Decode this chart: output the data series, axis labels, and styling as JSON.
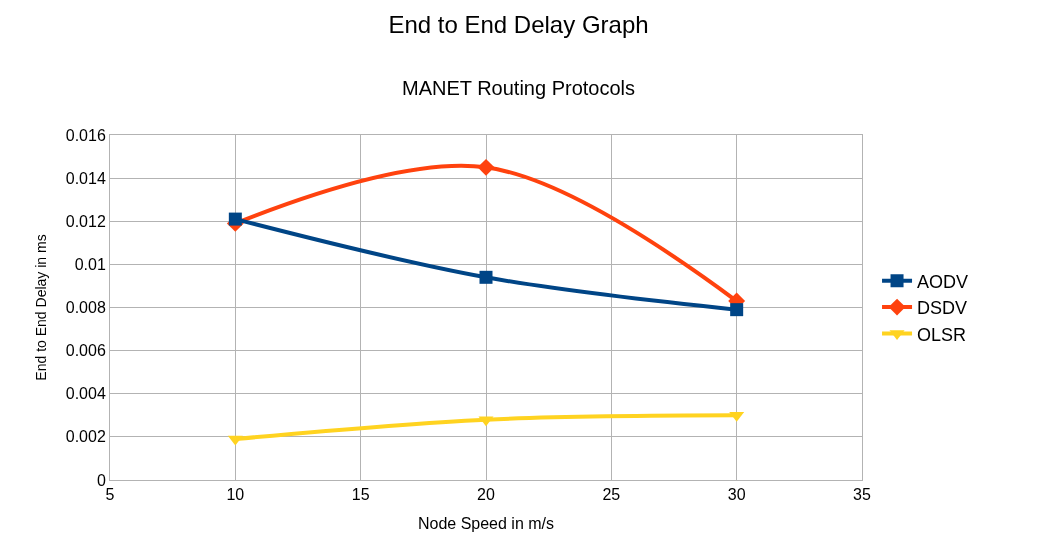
{
  "chart_data": {
    "type": "line",
    "title": "End to End Delay Graph",
    "subtitle": "MANET Routing Protocols",
    "xlabel": "Node Speed in m/s",
    "ylabel": "End to End Delay in ms",
    "x": [
      10,
      20,
      30
    ],
    "series": [
      {
        "name": "AODV",
        "color": "#004586",
        "values": [
          0.0121,
          0.0094,
          0.0079
        ],
        "marker": "square"
      },
      {
        "name": "DSDV",
        "color": "#ff420e",
        "values": [
          0.0119,
          0.0145,
          0.0083
        ],
        "marker": "diamond"
      },
      {
        "name": "OLSR",
        "color": "#ffd320",
        "values": [
          0.0019,
          0.0028,
          0.003
        ],
        "marker": "triangle"
      }
    ],
    "xlim": [
      5,
      35
    ],
    "xticks": [
      5,
      10,
      15,
      20,
      25,
      30,
      35
    ],
    "ylim": [
      0,
      0.016
    ],
    "yticks": [
      0,
      0.002,
      0.004,
      0.006,
      0.008,
      0.01,
      0.012,
      0.014,
      0.016
    ],
    "grid": true,
    "legend": "right",
    "line_style": "solid"
  }
}
